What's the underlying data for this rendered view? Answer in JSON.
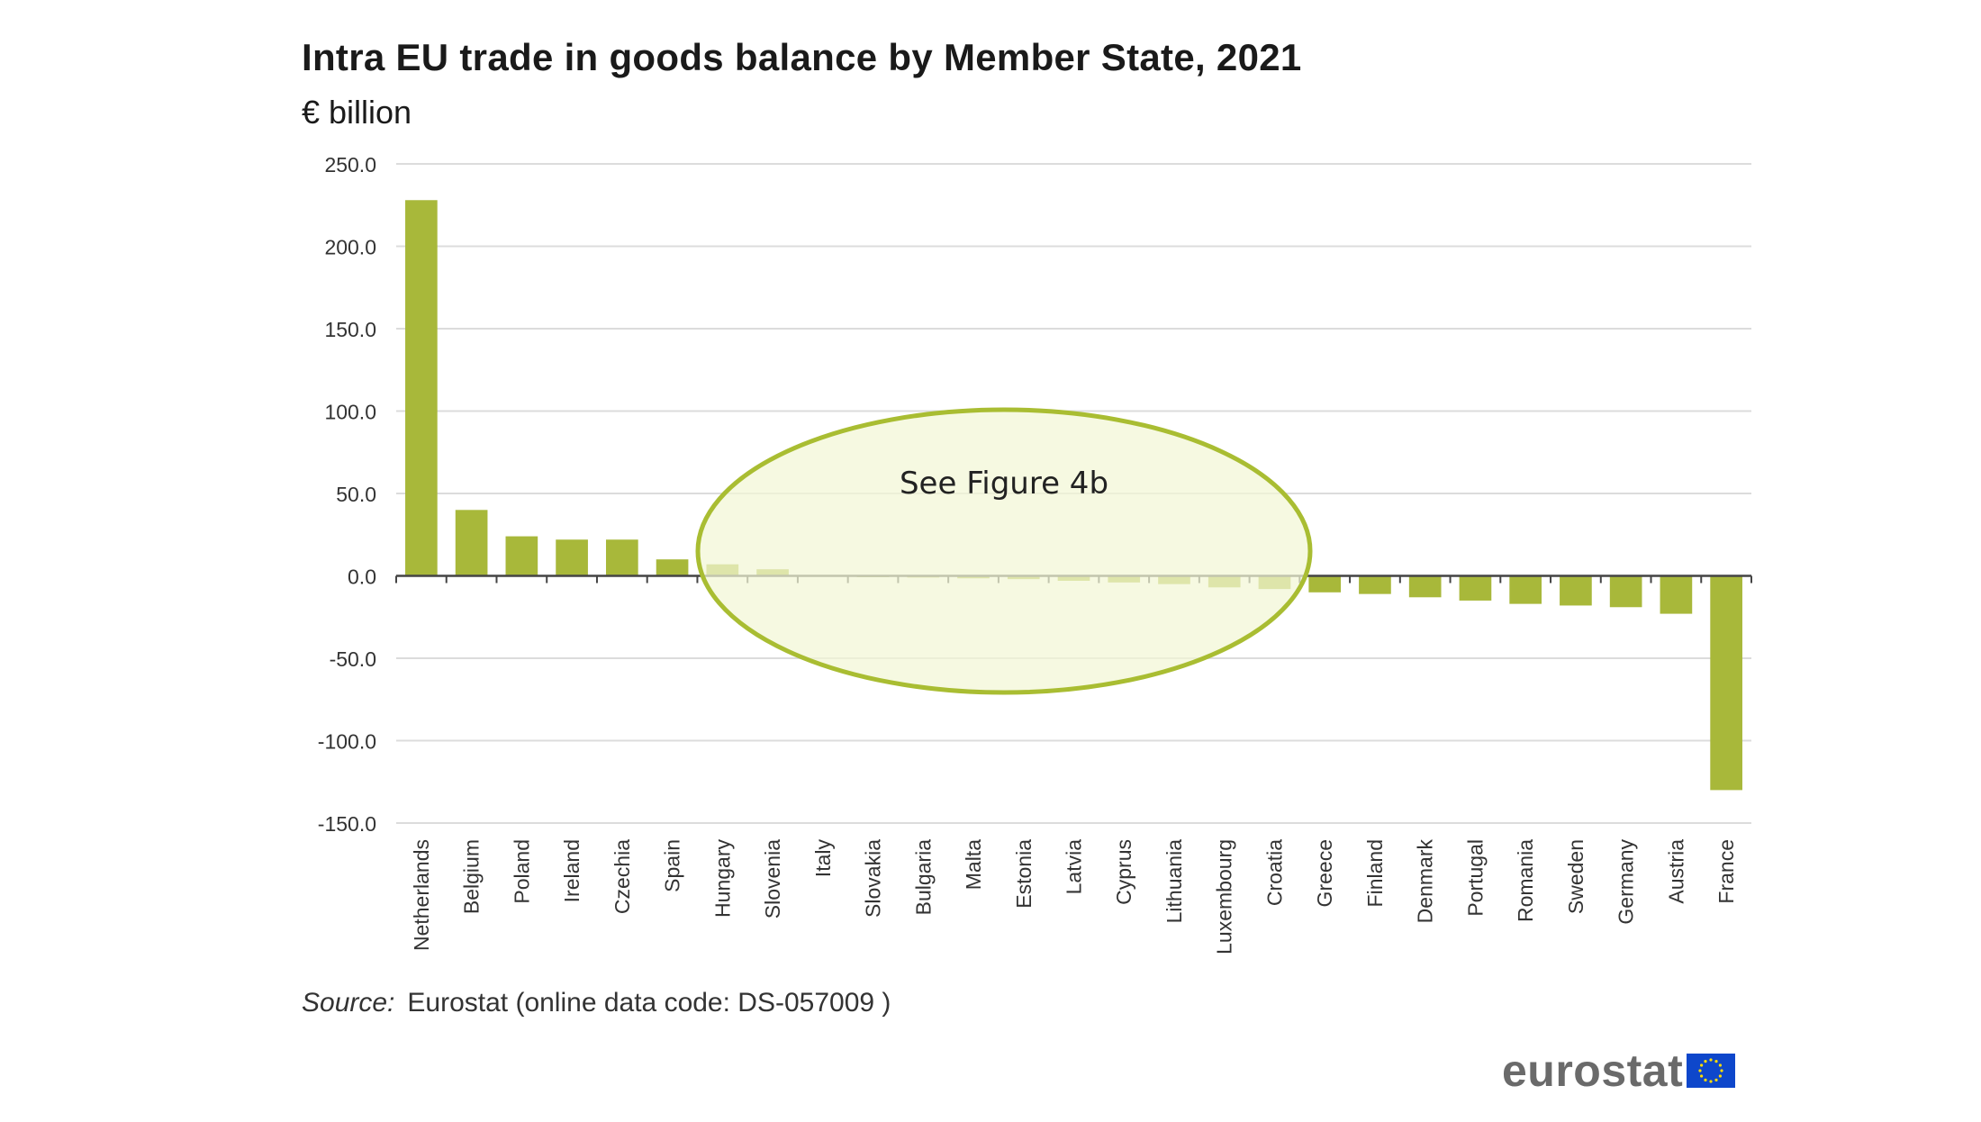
{
  "chart_data": {
    "type": "bar",
    "title": "Intra EU trade in goods balance by Member State, 2021",
    "subtitle": "€ billion",
    "categories": [
      "Netherlands",
      "Belgium",
      "Poland",
      "Ireland",
      "Czechia",
      "Spain",
      "Hungary",
      "Slovenia",
      "Italy",
      "Slovakia",
      "Bulgaria",
      "Malta",
      "Estonia",
      "Latvia",
      "Cyprus",
      "Lithuania",
      "Luxembourg",
      "Croatia",
      "Greece",
      "Finland",
      "Denmark",
      "Portugal",
      "Romania",
      "Sweden",
      "Germany",
      "Austria",
      "France"
    ],
    "values": [
      228,
      40,
      24,
      22,
      22,
      10,
      7,
      4,
      0.5,
      -0.5,
      -1,
      -1.5,
      -2,
      -3,
      -4,
      -5,
      -7,
      -8,
      -10,
      -11,
      -13,
      -15,
      -17,
      -18,
      -19,
      -23,
      -130
    ],
    "ylim": [
      -150,
      250
    ],
    "yticks": [
      250,
      200,
      150,
      100,
      50,
      0,
      -50,
      -100,
      -150
    ],
    "ytick_labels": [
      "250.0",
      "200.0",
      "150.0",
      "100.0",
      "50.0",
      "0.0",
      "-50.0",
      "-100.0",
      "-150.0"
    ],
    "grid": true,
    "bar_color": "#a8b83a",
    "annotation": "See Figure 4b",
    "annotation_fill": "#f3f6d6",
    "annotation_stroke": "#a9bd32"
  },
  "source_label": "Source:",
  "source_text": "Eurostat (online data code: DS-057009 )",
  "logo_text": "eurostat"
}
